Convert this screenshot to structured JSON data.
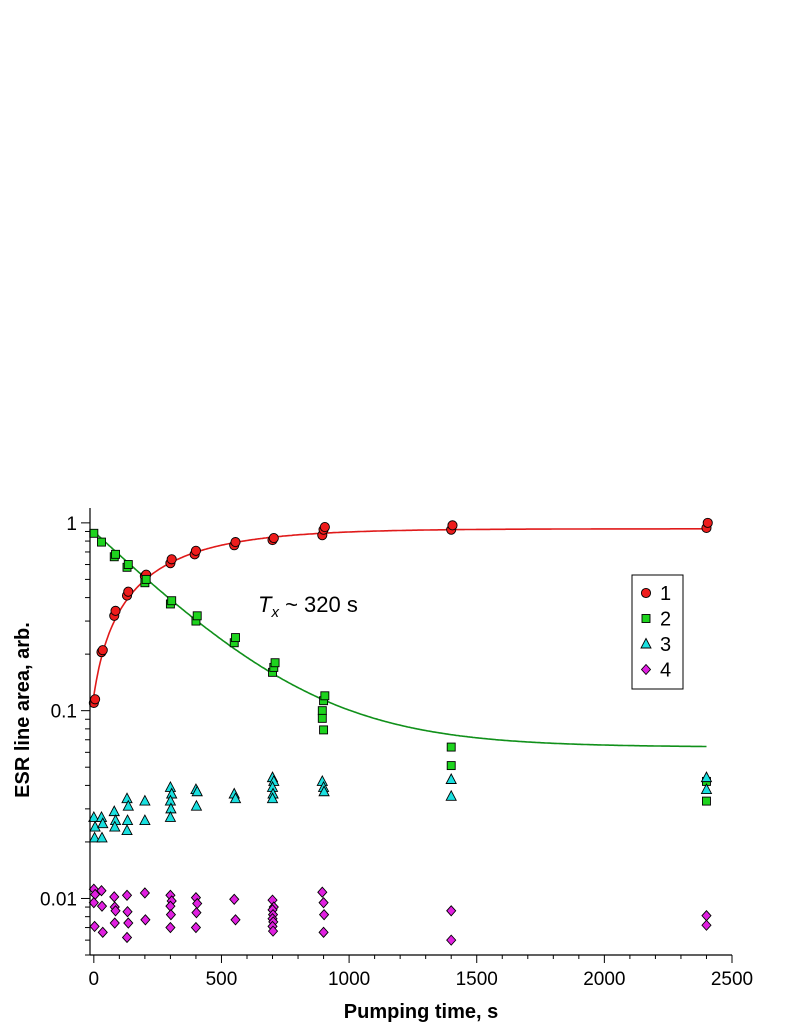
{
  "chart_data": {
    "type": "scatter",
    "title": "",
    "xlabel": "Pumping time, s",
    "ylabel": "ESR line area, arb.",
    "xlim": [
      -15,
      2500
    ],
    "ylim": [
      0.005,
      1.2
    ],
    "yscale": "log",
    "grid": false,
    "legend_position": "right",
    "x_ticks": [
      {
        "value": 0,
        "label": "0"
      },
      {
        "value": 500,
        "label": "500"
      },
      {
        "value": 1000,
        "label": "1000"
      },
      {
        "value": 1500,
        "label": "1500"
      },
      {
        "value": 2000,
        "label": "2000"
      },
      {
        "value": 2500,
        "label": "2500"
      }
    ],
    "y_ticks": [
      {
        "value": 0.01,
        "label": "0.01"
      },
      {
        "value": 0.1,
        "label": "0.1"
      },
      {
        "value": 1,
        "label": "1"
      }
    ],
    "annotation": {
      "symbol": "T",
      "subscript": "x",
      "text": " ~ 320 s",
      "x": 620,
      "y": 0.37
    },
    "series": [
      {
        "name": "1",
        "marker": "circle",
        "color": "#ee1c1c",
        "points": [
          [
            0,
            0.11
          ],
          [
            5,
            0.115
          ],
          [
            30,
            0.205
          ],
          [
            35,
            0.21
          ],
          [
            80,
            0.32
          ],
          [
            85,
            0.34
          ],
          [
            130,
            0.41
          ],
          [
            135,
            0.43
          ],
          [
            200,
            0.52
          ],
          [
            205,
            0.53
          ],
          [
            300,
            0.61
          ],
          [
            305,
            0.64
          ],
          [
            395,
            0.68
          ],
          [
            400,
            0.71
          ],
          [
            550,
            0.76
          ],
          [
            555,
            0.79
          ],
          [
            700,
            0.81
          ],
          [
            705,
            0.83
          ],
          [
            895,
            0.86
          ],
          [
            900,
            0.92
          ],
          [
            905,
            0.95
          ],
          [
            1400,
            0.92
          ],
          [
            1405,
            0.97
          ],
          [
            2400,
            0.94
          ],
          [
            2405,
            1.0
          ]
        ]
      },
      {
        "name": "2",
        "marker": "square",
        "color": "#1ed41e",
        "points": [
          [
            0,
            0.88
          ],
          [
            30,
            0.79
          ],
          [
            80,
            0.66
          ],
          [
            85,
            0.68
          ],
          [
            130,
            0.58
          ],
          [
            135,
            0.6
          ],
          [
            200,
            0.48
          ],
          [
            205,
            0.5
          ],
          [
            300,
            0.37
          ],
          [
            305,
            0.385
          ],
          [
            400,
            0.3
          ],
          [
            405,
            0.32
          ],
          [
            550,
            0.23
          ],
          [
            555,
            0.245
          ],
          [
            700,
            0.16
          ],
          [
            705,
            0.17
          ],
          [
            710,
            0.18
          ],
          [
            895,
            0.1
          ],
          [
            900,
            0.113
          ],
          [
            905,
            0.12
          ],
          [
            895,
            0.091
          ],
          [
            900,
            0.079
          ],
          [
            1400,
            0.064
          ],
          [
            1400,
            0.051
          ],
          [
            2400,
            0.042
          ],
          [
            2400,
            0.033
          ]
        ]
      },
      {
        "name": "3",
        "marker": "triangle",
        "color": "#1ae0e0",
        "points": [
          [
            0,
            0.027
          ],
          [
            5,
            0.024
          ],
          [
            3,
            0.021
          ],
          [
            30,
            0.027
          ],
          [
            35,
            0.025
          ],
          [
            32,
            0.021
          ],
          [
            80,
            0.029
          ],
          [
            85,
            0.026
          ],
          [
            82,
            0.024
          ],
          [
            130,
            0.034
          ],
          [
            135,
            0.031
          ],
          [
            132,
            0.026
          ],
          [
            130,
            0.023
          ],
          [
            200,
            0.033
          ],
          [
            200,
            0.026
          ],
          [
            300,
            0.039
          ],
          [
            305,
            0.036
          ],
          [
            300,
            0.033
          ],
          [
            302,
            0.03
          ],
          [
            300,
            0.027
          ],
          [
            400,
            0.038
          ],
          [
            405,
            0.037
          ],
          [
            402,
            0.031
          ],
          [
            550,
            0.036
          ],
          [
            555,
            0.034
          ],
          [
            700,
            0.044
          ],
          [
            705,
            0.042
          ],
          [
            700,
            0.039
          ],
          [
            702,
            0.036
          ],
          [
            700,
            0.034
          ],
          [
            895,
            0.042
          ],
          [
            900,
            0.039
          ],
          [
            902,
            0.037
          ],
          [
            1400,
            0.043
          ],
          [
            1400,
            0.035
          ],
          [
            2400,
            0.044
          ],
          [
            2400,
            0.038
          ]
        ]
      },
      {
        "name": "4",
        "marker": "diamond",
        "color": "#e020e0",
        "points": [
          [
            0,
            0.0112
          ],
          [
            5,
            0.0105
          ],
          [
            0,
            0.0095
          ],
          [
            3,
            0.0071
          ],
          [
            30,
            0.011
          ],
          [
            32,
            0.0091
          ],
          [
            35,
            0.0066
          ],
          [
            80,
            0.0102
          ],
          [
            82,
            0.009
          ],
          [
            85,
            0.0086
          ],
          [
            82,
            0.0074
          ],
          [
            130,
            0.0104
          ],
          [
            132,
            0.0085
          ],
          [
            135,
            0.0074
          ],
          [
            130,
            0.0062
          ],
          [
            200,
            0.0107
          ],
          [
            202,
            0.0077
          ],
          [
            300,
            0.0104
          ],
          [
            305,
            0.0097
          ],
          [
            300,
            0.0091
          ],
          [
            302,
            0.0082
          ],
          [
            300,
            0.007
          ],
          [
            400,
            0.0101
          ],
          [
            405,
            0.0094
          ],
          [
            402,
            0.0084
          ],
          [
            400,
            0.007
          ],
          [
            550,
            0.0099
          ],
          [
            555,
            0.0077
          ],
          [
            700,
            0.0098
          ],
          [
            705,
            0.009
          ],
          [
            700,
            0.0087
          ],
          [
            702,
            0.0082
          ],
          [
            700,
            0.0078
          ],
          [
            703,
            0.0075
          ],
          [
            700,
            0.0071
          ],
          [
            702,
            0.0067
          ],
          [
            895,
            0.0108
          ],
          [
            900,
            0.0095
          ],
          [
            902,
            0.0082
          ],
          [
            900,
            0.0066
          ],
          [
            1400,
            0.0086
          ],
          [
            1400,
            0.006
          ],
          [
            2400,
            0.0081
          ],
          [
            2400,
            0.0072
          ]
        ]
      }
    ],
    "fits": [
      {
        "series": "1",
        "color": "#e01a1a",
        "model": "saturating",
        "A": 0.93,
        "A0": 0.12,
        "tau": 320,
        "x_range": [
          0,
          2400
        ]
      },
      {
        "series": "2",
        "color": "#10901a",
        "model": "decay",
        "A0": 0.9,
        "Ainf": 0.064,
        "tau": 320,
        "x_range": [
          0,
          2400
        ]
      }
    ]
  }
}
